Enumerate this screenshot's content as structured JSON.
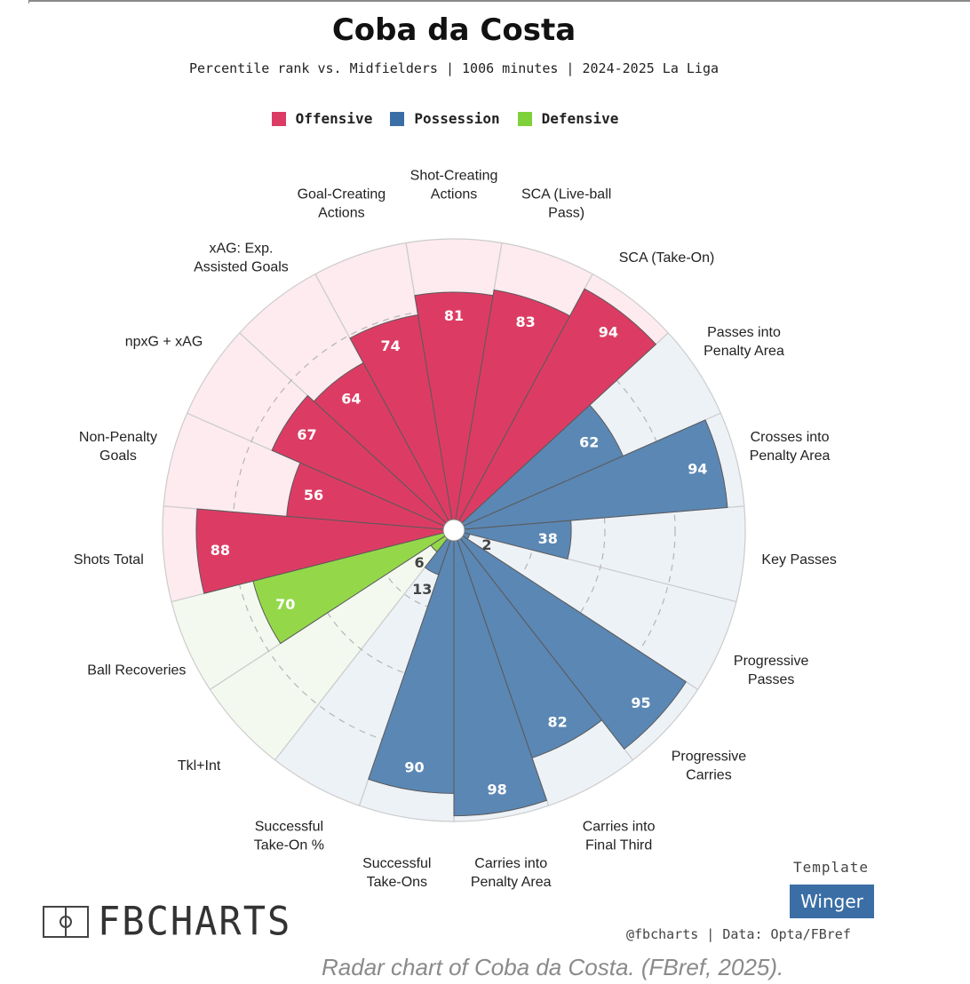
{
  "title": "Coba da Costa",
  "subtitle": "Percentile rank vs. Midfielders | 1006 minutes | 2024-2025 La Liga",
  "legend": [
    {
      "label": "Offensive",
      "color": "#dc3c64"
    },
    {
      "label": "Possession",
      "color": "#3a6ea5"
    },
    {
      "label": "Defensive",
      "color": "#7fd13b"
    }
  ],
  "chart_data": {
    "type": "radar",
    "scale_max": 100,
    "rings": [
      25,
      50,
      75
    ],
    "metrics": [
      {
        "label": "Non-Penalty Goals",
        "value": 56,
        "group": "Offensive"
      },
      {
        "label": "npxG + xAG",
        "value": 67,
        "group": "Offensive"
      },
      {
        "label": "xAG: Exp. Assisted Goals",
        "value": 64,
        "group": "Offensive"
      },
      {
        "label": "Goal-Creating Actions",
        "value": 74,
        "group": "Offensive"
      },
      {
        "label": "Shot-Creating Actions",
        "value": 81,
        "group": "Offensive"
      },
      {
        "label": "SCA (Live-ball Pass)",
        "value": 83,
        "group": "Offensive"
      },
      {
        "label": "SCA (Take-On)",
        "value": 94,
        "group": "Offensive"
      },
      {
        "label": "Passes into Penalty Area",
        "value": 62,
        "group": "Possession"
      },
      {
        "label": "Crosses into Penalty Area",
        "value": 94,
        "group": "Possession"
      },
      {
        "label": "Key Passes",
        "value": 38,
        "group": "Possession"
      },
      {
        "label": "Progressive Passes",
        "value": 2,
        "group": "Possession"
      },
      {
        "label": "Progressive Carries",
        "value": 95,
        "group": "Possession"
      },
      {
        "label": "Carries into Final Third",
        "value": 82,
        "group": "Possession"
      },
      {
        "label": "Carries into Penalty Area",
        "value": 98,
        "group": "Possession"
      },
      {
        "label": "Successful Take-Ons",
        "value": 90,
        "group": "Possession"
      },
      {
        "label": "Successful Take-On %",
        "value": 13,
        "group": "Possession"
      },
      {
        "label": "Tkl+Int",
        "value": 6,
        "group": "Defensive"
      },
      {
        "label": "Ball Recoveries",
        "value": 70,
        "group": "Defensive"
      },
      {
        "label": "Shots Total",
        "value": 88,
        "group": "Offensive"
      }
    ],
    "group_colors": {
      "Offensive": {
        "fill": "#dc3c64",
        "bg": "#fdebef"
      },
      "Possession": {
        "fill": "#5b87b4",
        "bg": "#edf2f7"
      },
      "Defensive": {
        "fill": "#94d84a",
        "bg": "#f3f9ee"
      }
    }
  },
  "template": {
    "label": "Template",
    "name": "Winger"
  },
  "credit": "@fbcharts | Data: Opta/FBref",
  "logo_text": "FBCHARTS",
  "caption": "Radar chart of Coba da Costa. (FBref, 2025)."
}
